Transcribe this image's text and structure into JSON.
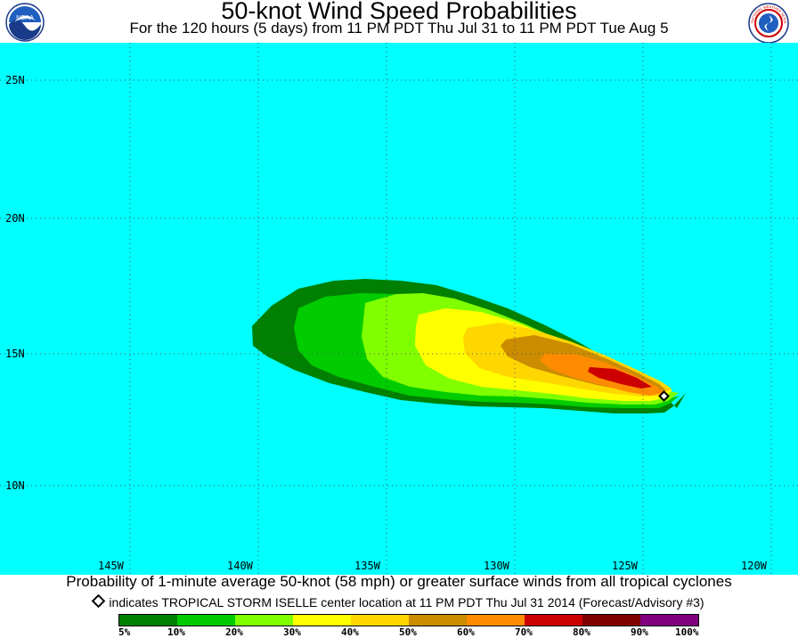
{
  "header": {
    "title": "50-knot Wind Speed Probabilities",
    "subtitle": "For the 120 hours (5 days) from 11 PM PDT Thu Jul 31 to 11 PM PDT Tue Aug 5"
  },
  "logos": {
    "left": "NOAA",
    "right": "NATIONAL WEATHER SERVICE"
  },
  "map": {
    "ocean_color": "#00ffff",
    "lat_labels": [
      "25N",
      "20N",
      "15N",
      "10N"
    ],
    "lon_labels": [
      "145W",
      "140W",
      "135W",
      "130W",
      "125W",
      "120W"
    ],
    "storm_marker": "storm-center-diamond"
  },
  "footer": {
    "caption": "Probability of 1-minute average 50-knot (58 mph) or greater surface winds from all tropical cyclones",
    "legend_note": "indicates TROPICAL STORM ISELLE center location at 11 PM PDT Thu Jul 31 2014 (Forecast/Advisory #3)"
  },
  "legend": {
    "colors": [
      "#008000",
      "#00cc00",
      "#80ff00",
      "#ffff00",
      "#ffd700",
      "#cc8c00",
      "#ff8c00",
      "#cc0000",
      "#800000",
      "#800080"
    ],
    "labels": [
      "5%",
      "10%",
      "20%",
      "30%",
      "40%",
      "50%",
      "60%",
      "70%",
      "80%",
      "90%",
      "100%"
    ]
  }
}
